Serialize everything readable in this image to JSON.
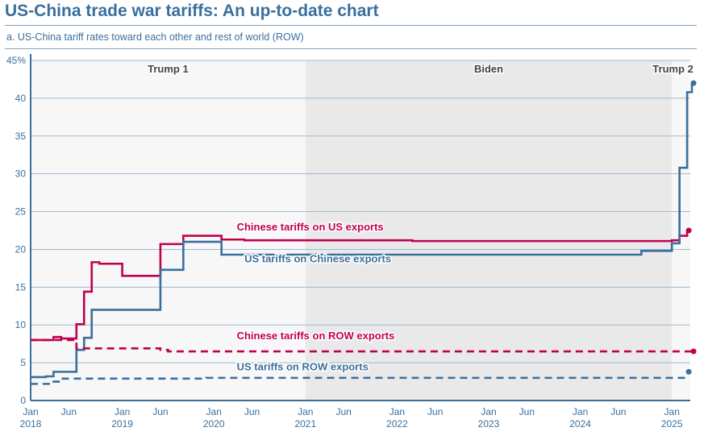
{
  "title": "US-China trade war tariffs: An up-to-date chart",
  "subtitle": "a. US-China tariff rates toward each other and rest of world (ROW)",
  "chart_data": {
    "type": "line",
    "step": true,
    "ylim": [
      0,
      45
    ],
    "yticks": [
      0,
      5,
      10,
      15,
      20,
      25,
      30,
      35,
      40,
      45
    ],
    "ytick_labels": [
      "0",
      "5",
      "10",
      "15",
      "20",
      "25",
      "30",
      "35",
      "40",
      "45%"
    ],
    "xlim": [
      "2018-01",
      "2025-04"
    ],
    "xticks": [
      {
        "date": "2018-01",
        "l1": "Jan",
        "l2": "2018"
      },
      {
        "date": "2018-06",
        "l1": "Jun",
        "l2": ""
      },
      {
        "date": "2019-01",
        "l1": "Jan",
        "l2": "2019"
      },
      {
        "date": "2019-06",
        "l1": "Jun",
        "l2": ""
      },
      {
        "date": "2020-01",
        "l1": "Jan",
        "l2": "2020"
      },
      {
        "date": "2020-06",
        "l1": "Jun",
        "l2": ""
      },
      {
        "date": "2021-01",
        "l1": "Jan",
        "l2": "2021"
      },
      {
        "date": "2021-06",
        "l1": "Jun",
        "l2": ""
      },
      {
        "date": "2022-01",
        "l1": "Jan",
        "l2": "2022"
      },
      {
        "date": "2022-06",
        "l1": "Jun",
        "l2": ""
      },
      {
        "date": "2023-01",
        "l1": "Jan",
        "l2": "2023"
      },
      {
        "date": "2023-06",
        "l1": "Jun",
        "l2": ""
      },
      {
        "date": "2024-01",
        "l1": "Jan",
        "l2": "2024"
      },
      {
        "date": "2024-06",
        "l1": "Jun",
        "l2": ""
      },
      {
        "date": "2025-01",
        "l1": "Jan",
        "l2": "2025"
      }
    ],
    "periods": [
      {
        "label": "Trump 1",
        "start": "2018-01",
        "end": "2021-01",
        "color": "#f7f7f7"
      },
      {
        "label": "Biden",
        "start": "2021-01",
        "end": "2025-01",
        "color": "#e9e9e9"
      },
      {
        "label": "Trump 2",
        "start": "2025-01",
        "end": "2025-04",
        "color": "#f7f7f7"
      }
    ],
    "grid": true,
    "series": [
      {
        "name": "Chinese tariffs on US exports",
        "color": "#c0004e",
        "dash": false,
        "points": [
          [
            "2018-01",
            8.0
          ],
          [
            "2018-04",
            8.4
          ],
          [
            "2018-05",
            8.2
          ],
          [
            "2018-07",
            10.1
          ],
          [
            "2018-08",
            14.4
          ],
          [
            "2018-09",
            18.3
          ],
          [
            "2018-10",
            18.1
          ],
          [
            "2019-01",
            16.5
          ],
          [
            "2019-06",
            20.7
          ],
          [
            "2019-09",
            21.8
          ],
          [
            "2020-02",
            21.3
          ],
          [
            "2020-05",
            21.2
          ],
          [
            "2022-03",
            21.1
          ],
          [
            "2025-01",
            21.2
          ],
          [
            "2025-02",
            21.8
          ],
          [
            "2025-03",
            22.5
          ]
        ]
      },
      {
        "name": "US tariffs on Chinese exports",
        "color": "#3a6f9c",
        "dash": false,
        "points": [
          [
            "2018-01",
            3.1
          ],
          [
            "2018-03",
            3.2
          ],
          [
            "2018-04",
            3.8
          ],
          [
            "2018-07",
            6.7
          ],
          [
            "2018-08",
            8.3
          ],
          [
            "2018-09",
            12.0
          ],
          [
            "2019-06",
            17.3
          ],
          [
            "2019-09",
            21.0
          ],
          [
            "2020-02",
            19.3
          ],
          [
            "2024-09",
            19.8
          ],
          [
            "2025-01",
            20.8
          ],
          [
            "2025-02",
            30.8
          ],
          [
            "2025-03",
            40.8
          ],
          [
            "2025-03-20",
            42.0
          ]
        ]
      },
      {
        "name": "Chinese tariffs on ROW exports",
        "color": "#c0004e",
        "dash": true,
        "points": [
          [
            "2018-01",
            8.0
          ],
          [
            "2018-05",
            8.0
          ],
          [
            "2018-07",
            6.9
          ],
          [
            "2019-06",
            6.7
          ],
          [
            "2019-07",
            6.5
          ],
          [
            "2025-03-20",
            6.5
          ]
        ]
      },
      {
        "name": "US tariffs on ROW exports",
        "color": "#3a6f9c",
        "dash": true,
        "points": [
          [
            "2018-01",
            2.2
          ],
          [
            "2018-04",
            2.5
          ],
          [
            "2018-05",
            2.9
          ],
          [
            "2019-12",
            3.0
          ],
          [
            "2025-03",
            3.0
          ]
        ],
        "end_marker": 3.8
      }
    ],
    "labels": [
      {
        "text": "Chinese tariffs on US exports",
        "date": "2020-04",
        "y": 22.5,
        "color": "#c0004e"
      },
      {
        "text": "US tariffs on Chinese exports",
        "date": "2020-05",
        "y": 18.3,
        "color": "#3a6f9c"
      },
      {
        "text": "Chinese tariffs on ROW exports",
        "date": "2020-04",
        "y": 8.1,
        "color": "#c0004e"
      },
      {
        "text": "US tariffs on ROW exports",
        "date": "2020-04",
        "y": 4.0,
        "color": "#3a6f9c"
      }
    ]
  }
}
